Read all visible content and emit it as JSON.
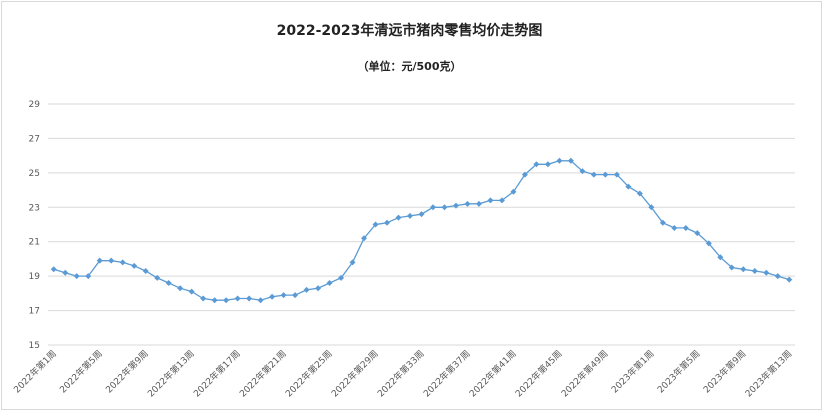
{
  "chart_data": {
    "type": "line",
    "title": "2022-2023年清远市猪肉零售均价走势图",
    "subtitle": "（单位：元/500克）",
    "xlabel": "",
    "ylabel": "",
    "ylim": [
      15,
      29
    ],
    "yticks": [
      15,
      17,
      19,
      21,
      23,
      25,
      27,
      29
    ],
    "grid": true,
    "legend": "none",
    "colors": {
      "line": "#5b9bd5",
      "marker": "#5b9bd5",
      "grid": "#d9d9d9"
    },
    "x_tick_labels": [
      "2022年第1周",
      "2022年第5周",
      "2022年第9周",
      "2022年第13周",
      "2022年第17周",
      "2022年第21周",
      "2022年第25周",
      "2022年第29周",
      "2022年第33周",
      "2022年第37周",
      "2022年第41周",
      "2022年第45周",
      "2022年第49周",
      "2023年第1周",
      "2023年第5周",
      "2023年第9周",
      "2023年第13周"
    ],
    "x_tick_every": 4,
    "series": [
      {
        "values": [
          19.4,
          19.2,
          19.0,
          19.0,
          19.9,
          19.9,
          19.8,
          19.6,
          19.3,
          18.9,
          18.6,
          18.3,
          18.1,
          17.7,
          17.6,
          17.6,
          17.7,
          17.7,
          17.6,
          17.8,
          17.9,
          17.9,
          18.2,
          18.3,
          18.6,
          18.9,
          19.8,
          21.2,
          22.0,
          22.1,
          22.4,
          22.5,
          22.6,
          23.0,
          23.0,
          23.1,
          23.2,
          23.2,
          23.4,
          23.4,
          23.9,
          24.9,
          25.5,
          25.5,
          25.7,
          25.7,
          25.1,
          24.9,
          24.9,
          24.9,
          24.2,
          23.8,
          23.0,
          22.1,
          21.8,
          21.8,
          21.5,
          20.9,
          20.1,
          19.5,
          19.4,
          19.3,
          19.2,
          19.0,
          18.8
        ]
      }
    ]
  }
}
